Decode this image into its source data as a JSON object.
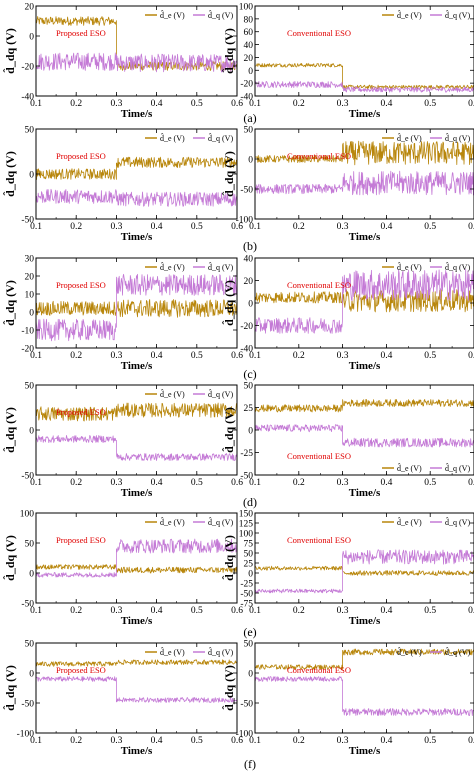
{
  "colors": {
    "de": "#b8860b",
    "dq": "#c47ad6",
    "annotation": "#e00000",
    "axis": "#000000"
  },
  "y_axis_label": "d̂_dq (V)",
  "x_axis_label": "Time/s",
  "chart_data": [
    {
      "type": "line",
      "row_label": "(a)",
      "side": "left",
      "annotation": "Proposed ESO",
      "legend": [
        "d̂_e (V)",
        "d̂_q (V)"
      ],
      "xlim": [
        0.1,
        0.6
      ],
      "x_ticks": [
        0.1,
        0.2,
        0.3,
        0.4,
        0.5,
        0.6
      ],
      "ylim": [
        -40,
        20
      ],
      "y_ticks": [
        -40,
        -20,
        0,
        20
      ],
      "series": [
        {
          "color": "#b8860b",
          "segments": [
            {
              "x": [
                0.1,
                0.3
              ],
              "mean": 10,
              "amp": 3
            },
            {
              "x": [
                0.3,
                0.6
              ],
              "mean": -20,
              "amp": 3
            }
          ]
        },
        {
          "color": "#c47ad6",
          "segments": [
            {
              "x": [
                0.1,
                0.3
              ],
              "mean": -17,
              "amp": 6
            },
            {
              "x": [
                0.3,
                0.6
              ],
              "mean": -18,
              "amp": 6
            }
          ]
        }
      ]
    },
    {
      "type": "line",
      "row_label": "(a)",
      "side": "right",
      "annotation": "Conventional ESO",
      "legend": [
        "d̂_e (V)",
        "d̂_q (V)"
      ],
      "xlim": [
        0.1,
        0.6
      ],
      "x_ticks": [
        0.1,
        0.2,
        0.3,
        0.4,
        0.5,
        0.6
      ],
      "ylim": [
        -40,
        100
      ],
      "y_ticks": [
        -40,
        -20,
        0,
        20,
        40,
        60,
        80,
        100
      ],
      "series": [
        {
          "color": "#b8860b",
          "segments": [
            {
              "x": [
                0.1,
                0.3
              ],
              "mean": 8,
              "amp": 3
            },
            {
              "x": [
                0.3,
                0.6
              ],
              "mean": -26,
              "amp": 3
            }
          ]
        },
        {
          "color": "#c47ad6",
          "segments": [
            {
              "x": [
                0.1,
                0.3
              ],
              "mean": -22,
              "amp": 5
            },
            {
              "x": [
                0.3,
                0.6
              ],
              "mean": -30,
              "amp": 4
            }
          ]
        }
      ]
    },
    {
      "type": "line",
      "row_label": "(b)",
      "side": "left",
      "annotation": "Proposed ESO",
      "legend": [
        "d̂_e (V)",
        "d̂_q (V)"
      ],
      "xlim": [
        0.1,
        0.6
      ],
      "x_ticks": [
        0.1,
        0.2,
        0.3,
        0.4,
        0.5,
        0.6
      ],
      "ylim": [
        -50,
        50
      ],
      "y_ticks": [
        -50,
        0,
        50
      ],
      "series": [
        {
          "color": "#b8860b",
          "segments": [
            {
              "x": [
                0.1,
                0.3
              ],
              "mean": 0,
              "amp": 6
            },
            {
              "x": [
                0.3,
                0.6
              ],
              "mean": 13,
              "amp": 6
            }
          ]
        },
        {
          "color": "#c47ad6",
          "segments": [
            {
              "x": [
                0.1,
                0.3
              ],
              "mean": -25,
              "amp": 8
            },
            {
              "x": [
                0.3,
                0.6
              ],
              "mean": -28,
              "amp": 8
            }
          ]
        }
      ]
    },
    {
      "type": "line",
      "row_label": "(b)",
      "side": "right",
      "annotation": "Conventional ESO",
      "legend": [
        "d̂_e (V)",
        "d̂_q (V)"
      ],
      "xlim": [
        0.1,
        0.6
      ],
      "x_ticks": [
        0.1,
        0.2,
        0.3,
        0.4,
        0.5,
        0.6
      ],
      "ylim": [
        -100,
        50
      ],
      "y_ticks": [
        -100,
        -50,
        0,
        50
      ],
      "series": [
        {
          "color": "#b8860b",
          "segments": [
            {
              "x": [
                0.1,
                0.3
              ],
              "mean": 0,
              "amp": 6
            },
            {
              "x": [
                0.3,
                0.6
              ],
              "mean": 10,
              "amp": 20
            }
          ]
        },
        {
          "color": "#c47ad6",
          "segments": [
            {
              "x": [
                0.1,
                0.3
              ],
              "mean": -50,
              "amp": 8
            },
            {
              "x": [
                0.3,
                0.6
              ],
              "mean": -40,
              "amp": 20
            }
          ]
        }
      ]
    },
    {
      "type": "line",
      "row_label": "(c)",
      "side": "left",
      "annotation": "Proposed ESO",
      "legend": [
        "d̂_e (V)",
        "d̂_q (V)"
      ],
      "xlim": [
        0.1,
        0.6
      ],
      "x_ticks": [
        0.1,
        0.2,
        0.3,
        0.4,
        0.5,
        0.6
      ],
      "ylim": [
        -20,
        30
      ],
      "y_ticks": [
        -20,
        -10,
        0,
        10,
        20,
        30
      ],
      "series": [
        {
          "color": "#b8860b",
          "segments": [
            {
              "x": [
                0.1,
                0.3
              ],
              "mean": 2,
              "amp": 4
            },
            {
              "x": [
                0.3,
                0.6
              ],
              "mean": 2,
              "amp": 5
            }
          ]
        },
        {
          "color": "#c47ad6",
          "segments": [
            {
              "x": [
                0.1,
                0.3
              ],
              "mean": -10,
              "amp": 6
            },
            {
              "x": [
                0.3,
                0.6
              ],
              "mean": 15,
              "amp": 6
            }
          ]
        }
      ]
    },
    {
      "type": "line",
      "row_label": "(c)",
      "side": "right",
      "annotation": "Conventional ESO",
      "legend": [
        "d̂_e (V)",
        "d̂_q (V)"
      ],
      "xlim": [
        0.1,
        0.6
      ],
      "x_ticks": [
        0.1,
        0.2,
        0.3,
        0.4,
        0.5,
        0.6
      ],
      "ylim": [
        -40,
        40
      ],
      "y_ticks": [
        -40,
        -20,
        0,
        20,
        40
      ],
      "series": [
        {
          "color": "#b8860b",
          "segments": [
            {
              "x": [
                0.1,
                0.3
              ],
              "mean": 5,
              "amp": 5
            },
            {
              "x": [
                0.3,
                0.6
              ],
              "mean": 2,
              "amp": 10
            }
          ]
        },
        {
          "color": "#c47ad6",
          "segments": [
            {
              "x": [
                0.1,
                0.3
              ],
              "mean": -20,
              "amp": 7
            },
            {
              "x": [
                0.3,
                0.6
              ],
              "mean": 16,
              "amp": 14
            }
          ]
        }
      ]
    },
    {
      "type": "line",
      "row_label": "(d)",
      "side": "left",
      "annotation": "Proposed ESO",
      "legend": [
        "d̂_e (V)",
        "d̂_q (V)"
      ],
      "xlim": [
        0.1,
        0.6
      ],
      "x_ticks": [
        0.1,
        0.2,
        0.3,
        0.4,
        0.5,
        0.6
      ],
      "ylim": [
        -50,
        50
      ],
      "y_ticks": [
        -50,
        0,
        50
      ],
      "series": [
        {
          "color": "#b8860b",
          "segments": [
            {
              "x": [
                0.1,
                0.3
              ],
              "mean": 18,
              "amp": 8
            },
            {
              "x": [
                0.3,
                0.6
              ],
              "mean": 22,
              "amp": 8
            }
          ]
        },
        {
          "color": "#c47ad6",
          "segments": [
            {
              "x": [
                0.1,
                0.3
              ],
              "mean": -10,
              "amp": 4
            },
            {
              "x": [
                0.3,
                0.6
              ],
              "mean": -30,
              "amp": 4
            }
          ]
        }
      ]
    },
    {
      "type": "line",
      "row_label": "(d)",
      "side": "right",
      "annotation": "Conventional ESO",
      "legend": [
        "d̂_e (V)",
        "d̂_q (V)"
      ],
      "xlim": [
        0.1,
        0.6
      ],
      "x_ticks": [
        0.1,
        0.2,
        0.3,
        0.4,
        0.5,
        0.6
      ],
      "ylim": [
        -50,
        50
      ],
      "y_ticks": [
        -50,
        -25,
        0,
        25,
        50
      ],
      "series": [
        {
          "color": "#b8860b",
          "segments": [
            {
              "x": [
                0.1,
                0.3
              ],
              "mean": 24,
              "amp": 4
            },
            {
              "x": [
                0.3,
                0.6
              ],
              "mean": 30,
              "amp": 4
            }
          ]
        },
        {
          "color": "#c47ad6",
          "segments": [
            {
              "x": [
                0.1,
                0.3
              ],
              "mean": 2,
              "amp": 4
            },
            {
              "x": [
                0.3,
                0.6
              ],
              "mean": -14,
              "amp": 5
            }
          ]
        }
      ]
    },
    {
      "type": "line",
      "row_label": "(e)",
      "side": "left",
      "annotation": "Proposed ESO",
      "legend": [
        "d̂_e (V)",
        "d̂_q (V)"
      ],
      "xlim": [
        0.1,
        0.6
      ],
      "x_ticks": [
        0.1,
        0.2,
        0.3,
        0.4,
        0.5,
        0.6
      ],
      "ylim": [
        -50,
        100
      ],
      "y_ticks": [
        -50,
        0,
        50,
        100
      ],
      "series": [
        {
          "color": "#b8860b",
          "segments": [
            {
              "x": [
                0.1,
                0.3
              ],
              "mean": 10,
              "amp": 4
            },
            {
              "x": [
                0.3,
                0.6
              ],
              "mean": 5,
              "amp": 5
            }
          ]
        },
        {
          "color": "#c47ad6",
          "segments": [
            {
              "x": [
                0.1,
                0.3
              ],
              "mean": -3,
              "amp": 4
            },
            {
              "x": [
                0.3,
                0.6
              ],
              "mean": 45,
              "amp": 12
            }
          ]
        }
      ]
    },
    {
      "type": "line",
      "row_label": "(e)",
      "side": "right",
      "annotation": "Conventional ESO",
      "legend": [
        "d̂_e (V)",
        "d̂_q (V)"
      ],
      "xlim": [
        0.1,
        0.6
      ],
      "x_ticks": [
        0.1,
        0.2,
        0.3,
        0.4,
        0.5,
        0.6
      ],
      "ylim": [
        -75,
        150
      ],
      "y_ticks": [
        -75,
        -50,
        -25,
        0,
        25,
        50,
        75,
        100,
        125,
        150
      ],
      "series": [
        {
          "color": "#b8860b",
          "segments": [
            {
              "x": [
                0.1,
                0.3
              ],
              "mean": 12,
              "amp": 5
            },
            {
              "x": [
                0.3,
                0.6
              ],
              "mean": 0,
              "amp": 6
            }
          ]
        },
        {
          "color": "#c47ad6",
          "segments": [
            {
              "x": [
                0.1,
                0.3
              ],
              "mean": -45,
              "amp": 5
            },
            {
              "x": [
                0.3,
                0.6
              ],
              "mean": 40,
              "amp": 18
            }
          ]
        }
      ]
    },
    {
      "type": "line",
      "row_label": "(f)",
      "side": "left",
      "annotation": "Proposed ESO",
      "legend": [
        "d̂_e (V)",
        "d̂_q (V)"
      ],
      "xlim": [
        0.1,
        0.6
      ],
      "x_ticks": [
        0.1,
        0.2,
        0.3,
        0.4,
        0.5,
        0.6
      ],
      "ylim": [
        -100,
        50
      ],
      "y_ticks": [
        -100,
        -50,
        0,
        50
      ],
      "series": [
        {
          "color": "#b8860b",
          "segments": [
            {
              "x": [
                0.1,
                0.3
              ],
              "mean": 15,
              "amp": 4
            },
            {
              "x": [
                0.3,
                0.6
              ],
              "mean": 18,
              "amp": 4
            }
          ]
        },
        {
          "color": "#c47ad6",
          "segments": [
            {
              "x": [
                0.1,
                0.3
              ],
              "mean": -10,
              "amp": 4
            },
            {
              "x": [
                0.3,
                0.6
              ],
              "mean": -45,
              "amp": 4
            }
          ]
        }
      ]
    },
    {
      "type": "line",
      "row_label": "(f)",
      "side": "right",
      "annotation": "Conventional ESO",
      "legend": [
        "d̂_e (V)",
        "d̂_q (V)"
      ],
      "xlim": [
        0.1,
        0.6
      ],
      "x_ticks": [
        0.1,
        0.2,
        0.3,
        0.4,
        0.5,
        0.6
      ],
      "ylim": [
        -100,
        50
      ],
      "y_ticks": [
        -100,
        -50,
        0,
        50
      ],
      "series": [
        {
          "color": "#b8860b",
          "segments": [
            {
              "x": [
                0.1,
                0.3
              ],
              "mean": 10,
              "amp": 4
            },
            {
              "x": [
                0.3,
                0.6
              ],
              "mean": 35,
              "amp": 5
            }
          ]
        },
        {
          "color": "#c47ad6",
          "segments": [
            {
              "x": [
                0.1,
                0.3
              ],
              "mean": -10,
              "amp": 4
            },
            {
              "x": [
                0.3,
                0.6
              ],
              "mean": -65,
              "amp": 6
            }
          ]
        }
      ]
    }
  ]
}
